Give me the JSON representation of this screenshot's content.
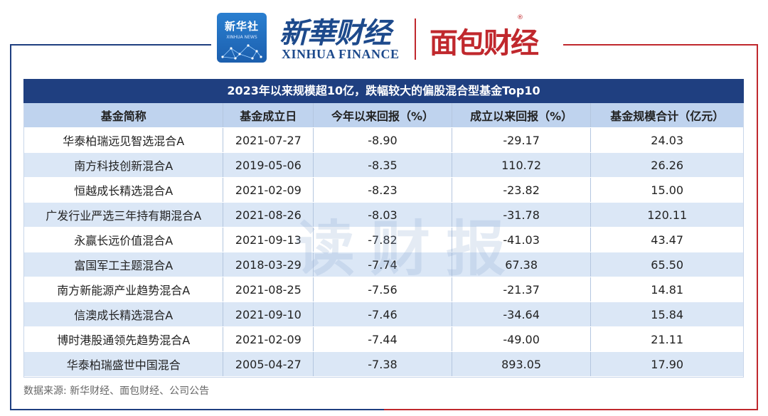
{
  "header": {
    "badge_title": "新华社",
    "badge_sub": "XINHUA NEWS",
    "brand_cn": "新華财经",
    "brand_en": "XINHUA FINANCE",
    "partner_logo": "面包财经",
    "partner_reg": "®"
  },
  "watermark": "读财报",
  "table": {
    "title": "2023年以来规模超10亿，跌幅较大的偏股混合型基金Top10",
    "columns": [
      "基金简称",
      "基金成立日",
      "今年以来回报（%）",
      "成立以来回报（%）",
      "基金规模合计（亿元）"
    ],
    "rows": [
      [
        "华泰柏瑞远见智选混合A",
        "2021-07-27",
        "-8.90",
        "-29.17",
        "24.03"
      ],
      [
        "南方科技创新混合A",
        "2019-05-06",
        "-8.35",
        "110.72",
        "26.26"
      ],
      [
        "恒越成长精选混合A",
        "2021-02-09",
        "-8.23",
        "-23.82",
        "15.00"
      ],
      [
        "广发行业严选三年持有期混合A",
        "2021-08-26",
        "-8.03",
        "-31.78",
        "120.11"
      ],
      [
        "永赢长远价值混合A",
        "2021-09-13",
        "-7.82",
        "-41.03",
        "43.47"
      ],
      [
        "富国军工主题混合A",
        "2018-03-29",
        "-7.74",
        "67.38",
        "65.50"
      ],
      [
        "南方新能源产业趋势混合A",
        "2021-08-25",
        "-7.56",
        "-21.37",
        "14.81"
      ],
      [
        "信澳成长精选混合A",
        "2021-09-10",
        "-7.46",
        "-34.64",
        "15.84"
      ],
      [
        "博时港股通领先趋势混合A",
        "2021-02-09",
        "-7.44",
        "-49.00",
        "21.11"
      ],
      [
        "华泰柏瑞盛世中国混合",
        "2005-04-27",
        "-7.38",
        "893.05",
        "17.90"
      ]
    ]
  },
  "source": "数据来源: 新华财经、面包财经、公司公告",
  "colors": {
    "navy": "#1f3f80",
    "red": "#c0282d",
    "header_row": "#bfd3ee",
    "alt_row": "#dbe7f6"
  }
}
